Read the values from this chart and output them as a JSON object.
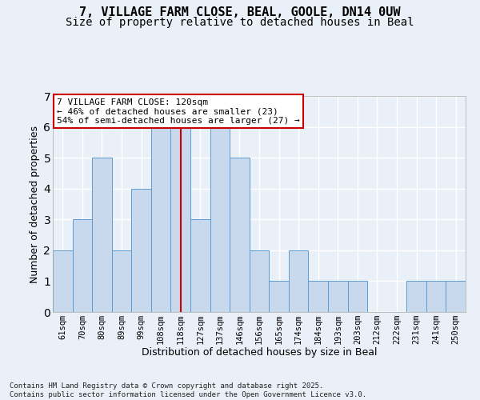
{
  "title_line1": "7, VILLAGE FARM CLOSE, BEAL, GOOLE, DN14 0UW",
  "title_line2": "Size of property relative to detached houses in Beal",
  "xlabel": "Distribution of detached houses by size in Beal",
  "ylabel": "Number of detached properties",
  "categories": [
    "61sqm",
    "70sqm",
    "80sqm",
    "89sqm",
    "99sqm",
    "108sqm",
    "118sqm",
    "127sqm",
    "137sqm",
    "146sqm",
    "156sqm",
    "165sqm",
    "174sqm",
    "184sqm",
    "193sqm",
    "203sqm",
    "212sqm",
    "222sqm",
    "231sqm",
    "241sqm",
    "250sqm"
  ],
  "values": [
    2,
    3,
    5,
    2,
    4,
    6,
    6,
    3,
    6,
    5,
    2,
    1,
    2,
    1,
    1,
    1,
    0,
    0,
    1,
    1,
    1
  ],
  "highlight_index": 6,
  "bar_color": "#c8d9ed",
  "bar_edge_color": "#5b9bd5",
  "highlight_line_color": "#cc0000",
  "annotation_text": "7 VILLAGE FARM CLOSE: 120sqm\n← 46% of detached houses are smaller (23)\n54% of semi-detached houses are larger (27) →",
  "annotation_box_edge_color": "#cc0000",
  "ylim": [
    0,
    7
  ],
  "yticks": [
    0,
    1,
    2,
    3,
    4,
    5,
    6,
    7
  ],
  "footer_text": "Contains HM Land Registry data © Crown copyright and database right 2025.\nContains public sector information licensed under the Open Government Licence v3.0.",
  "background_color": "#eaf0f8",
  "grid_color": "#ffffff",
  "title_fontsize": 11,
  "subtitle_fontsize": 10,
  "label_fontsize": 9,
  "tick_fontsize": 7.5,
  "footer_fontsize": 6.5
}
